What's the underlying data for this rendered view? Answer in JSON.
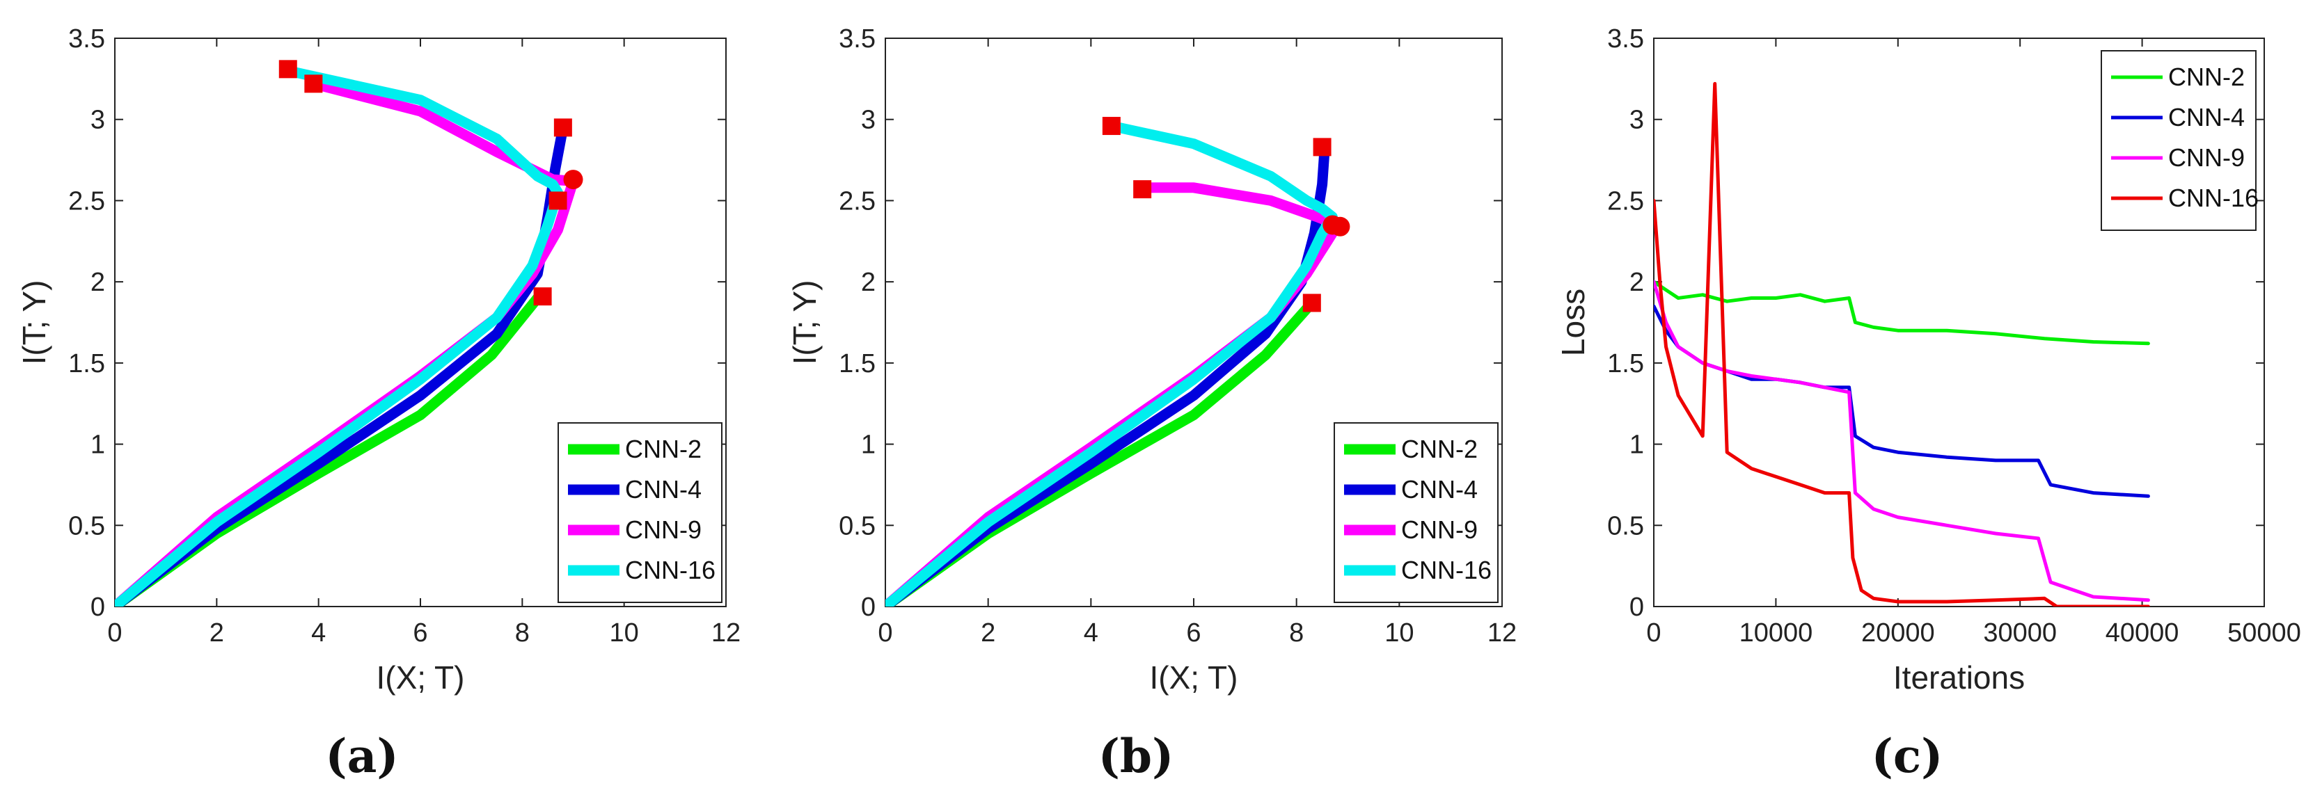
{
  "chart_data": [
    {
      "type": "line",
      "panel": "a",
      "caption": "(a)",
      "xlabel": "I(X; T)",
      "ylabel": "I(T; Y)",
      "xlim": [
        0,
        12
      ],
      "ylim": [
        0,
        3.5
      ],
      "xticks": [
        0,
        2,
        4,
        6,
        8,
        10,
        12
      ],
      "yticks": [
        0,
        0.5,
        1,
        1.5,
        2,
        2.5,
        3,
        3.5
      ],
      "legend": "bottom-right",
      "series": [
        {
          "name": "CNN-2",
          "color": "#00ee00",
          "x": [
            0,
            2,
            4,
            6,
            7.4,
            8.3
          ],
          "y": [
            0,
            0.45,
            0.82,
            1.18,
            1.55,
            1.9
          ]
        },
        {
          "name": "CNN-4",
          "color": "#0000dd",
          "x": [
            0,
            2,
            4,
            6,
            7.5,
            8.3,
            8.5,
            8.65,
            8.8
          ],
          "y": [
            0,
            0.48,
            0.88,
            1.3,
            1.68,
            2.05,
            2.4,
            2.7,
            2.95
          ]
        },
        {
          "name": "CNN-9",
          "color": "#ff00ff",
          "x": [
            0,
            2,
            4,
            6,
            7.5,
            8.2,
            8.7,
            9.0,
            8.6,
            7.5,
            6.0,
            3.9
          ],
          "y": [
            0,
            0.55,
            0.98,
            1.42,
            1.78,
            2.05,
            2.32,
            2.62,
            2.63,
            2.8,
            3.05,
            3.22
          ]
        },
        {
          "name": "CNN-16",
          "color": "#00eeee",
          "x": [
            0,
            2,
            4,
            6,
            7.5,
            8.2,
            8.5,
            8.7,
            8.6,
            8.3,
            7.5,
            6.0,
            3.4
          ],
          "y": [
            0,
            0.52,
            0.95,
            1.4,
            1.78,
            2.1,
            2.35,
            2.55,
            2.6,
            2.65,
            2.88,
            3.12,
            3.3
          ]
        }
      ],
      "markers": [
        {
          "shape": "square",
          "color": "#ee0000",
          "x": 3.4,
          "y": 3.31
        },
        {
          "shape": "square",
          "color": "#ee0000",
          "x": 3.9,
          "y": 3.22
        },
        {
          "shape": "square",
          "color": "#ee0000",
          "x": 8.8,
          "y": 2.95
        },
        {
          "shape": "square",
          "color": "#ee0000",
          "x": 8.7,
          "y": 2.5
        },
        {
          "shape": "square",
          "color": "#ee0000",
          "x": 8.4,
          "y": 1.91
        },
        {
          "shape": "circle",
          "color": "#ee0000",
          "x": 9.0,
          "y": 2.63
        }
      ]
    },
    {
      "type": "line",
      "panel": "b",
      "caption": "(b)",
      "xlabel": "I(X; T)",
      "ylabel": "I(T; Y)",
      "xlim": [
        0,
        12
      ],
      "ylim": [
        0,
        3.5
      ],
      "xticks": [
        0,
        2,
        4,
        6,
        8,
        10,
        12
      ],
      "yticks": [
        0,
        0.5,
        1,
        1.5,
        2,
        2.5,
        3,
        3.5
      ],
      "legend": "bottom-right",
      "series": [
        {
          "name": "CNN-2",
          "color": "#00ee00",
          "x": [
            0,
            2,
            4,
            6,
            7.4,
            8.3
          ],
          "y": [
            0,
            0.45,
            0.82,
            1.18,
            1.55,
            1.87
          ]
        },
        {
          "name": "CNN-4",
          "color": "#0000dd",
          "x": [
            0,
            2,
            4,
            6,
            7.4,
            8.1,
            8.35,
            8.5,
            8.55
          ],
          "y": [
            0,
            0.48,
            0.88,
            1.3,
            1.68,
            2.0,
            2.3,
            2.6,
            2.83
          ]
        },
        {
          "name": "CNN-9",
          "color": "#ff00ff",
          "x": [
            0,
            2,
            4,
            6,
            7.5,
            8.2,
            8.6,
            8.8,
            8.4,
            7.5,
            6.0,
            5.0
          ],
          "y": [
            0,
            0.55,
            0.98,
            1.42,
            1.78,
            2.05,
            2.25,
            2.35,
            2.4,
            2.5,
            2.58,
            2.58
          ]
        },
        {
          "name": "CNN-16",
          "color": "#00eeee",
          "x": [
            0,
            2,
            4,
            6,
            7.5,
            8.2,
            8.5,
            8.7,
            8.5,
            8.2,
            7.5,
            6.0,
            4.4
          ],
          "y": [
            0,
            0.52,
            0.95,
            1.4,
            1.78,
            2.1,
            2.3,
            2.4,
            2.45,
            2.5,
            2.65,
            2.85,
            2.96
          ]
        }
      ],
      "markers": [
        {
          "shape": "square",
          "color": "#ee0000",
          "x": 4.4,
          "y": 2.96
        },
        {
          "shape": "square",
          "color": "#ee0000",
          "x": 5.0,
          "y": 2.57
        },
        {
          "shape": "square",
          "color": "#ee0000",
          "x": 8.5,
          "y": 2.83
        },
        {
          "shape": "square",
          "color": "#ee0000",
          "x": 8.3,
          "y": 1.87
        },
        {
          "shape": "circle",
          "color": "#ee0000",
          "x": 8.7,
          "y": 2.35
        },
        {
          "shape": "circle",
          "color": "#ee0000",
          "x": 8.85,
          "y": 2.34
        }
      ]
    },
    {
      "type": "line",
      "panel": "c",
      "caption": "(c)",
      "xlabel": "Iterations",
      "ylabel": "Loss",
      "xlim": [
        0,
        50000
      ],
      "ylim": [
        0,
        3.5
      ],
      "xticks": [
        0,
        10000,
        20000,
        30000,
        40000,
        50000
      ],
      "yticks": [
        0,
        0.5,
        1,
        1.5,
        2,
        2.5,
        3,
        3.5
      ],
      "legend": "top-right",
      "series": [
        {
          "name": "CNN-2",
          "color": "#00ee00",
          "x": [
            0,
            1000,
            2000,
            4000,
            6000,
            8000,
            10000,
            12000,
            14000,
            16000,
            16500,
            18000,
            20000,
            24000,
            28000,
            32000,
            36000,
            40500
          ],
          "y": [
            2.0,
            1.95,
            1.9,
            1.92,
            1.88,
            1.9,
            1.9,
            1.92,
            1.88,
            1.9,
            1.75,
            1.72,
            1.7,
            1.7,
            1.68,
            1.65,
            1.63,
            1.62
          ]
        },
        {
          "name": "CNN-4",
          "color": "#0000dd",
          "x": [
            0,
            1000,
            2000,
            4000,
            6000,
            8000,
            10000,
            12000,
            14000,
            16000,
            16500,
            18000,
            20000,
            24000,
            28000,
            31500,
            32500,
            36000,
            40500
          ],
          "y": [
            1.85,
            1.7,
            1.6,
            1.5,
            1.45,
            1.4,
            1.4,
            1.38,
            1.35,
            1.35,
            1.05,
            0.98,
            0.95,
            0.92,
            0.9,
            0.9,
            0.75,
            0.7,
            0.68
          ]
        },
        {
          "name": "CNN-9",
          "color": "#ff00ff",
          "x": [
            0,
            1000,
            2000,
            4000,
            6000,
            8000,
            10000,
            12000,
            14000,
            16000,
            16500,
            18000,
            20000,
            24000,
            28000,
            31500,
            32500,
            36000,
            40500
          ],
          "y": [
            2.0,
            1.75,
            1.6,
            1.5,
            1.45,
            1.42,
            1.4,
            1.38,
            1.35,
            1.32,
            0.7,
            0.6,
            0.55,
            0.5,
            0.45,
            0.42,
            0.15,
            0.06,
            0.04
          ]
        },
        {
          "name": "CNN-16",
          "color": "#ee0000",
          "x": [
            0,
            500,
            1000,
            2000,
            4000,
            5000,
            6000,
            8000,
            10000,
            12000,
            14000,
            16000,
            16300,
            17000,
            18000,
            20000,
            24000,
            28000,
            32000,
            33000,
            36000,
            40500
          ],
          "y": [
            2.5,
            2.0,
            1.6,
            1.3,
            1.05,
            3.22,
            0.95,
            0.85,
            0.8,
            0.75,
            0.7,
            0.7,
            0.3,
            0.1,
            0.05,
            0.03,
            0.03,
            0.04,
            0.05,
            0.0,
            0.0,
            0.0
          ]
        }
      ],
      "markers": []
    }
  ]
}
